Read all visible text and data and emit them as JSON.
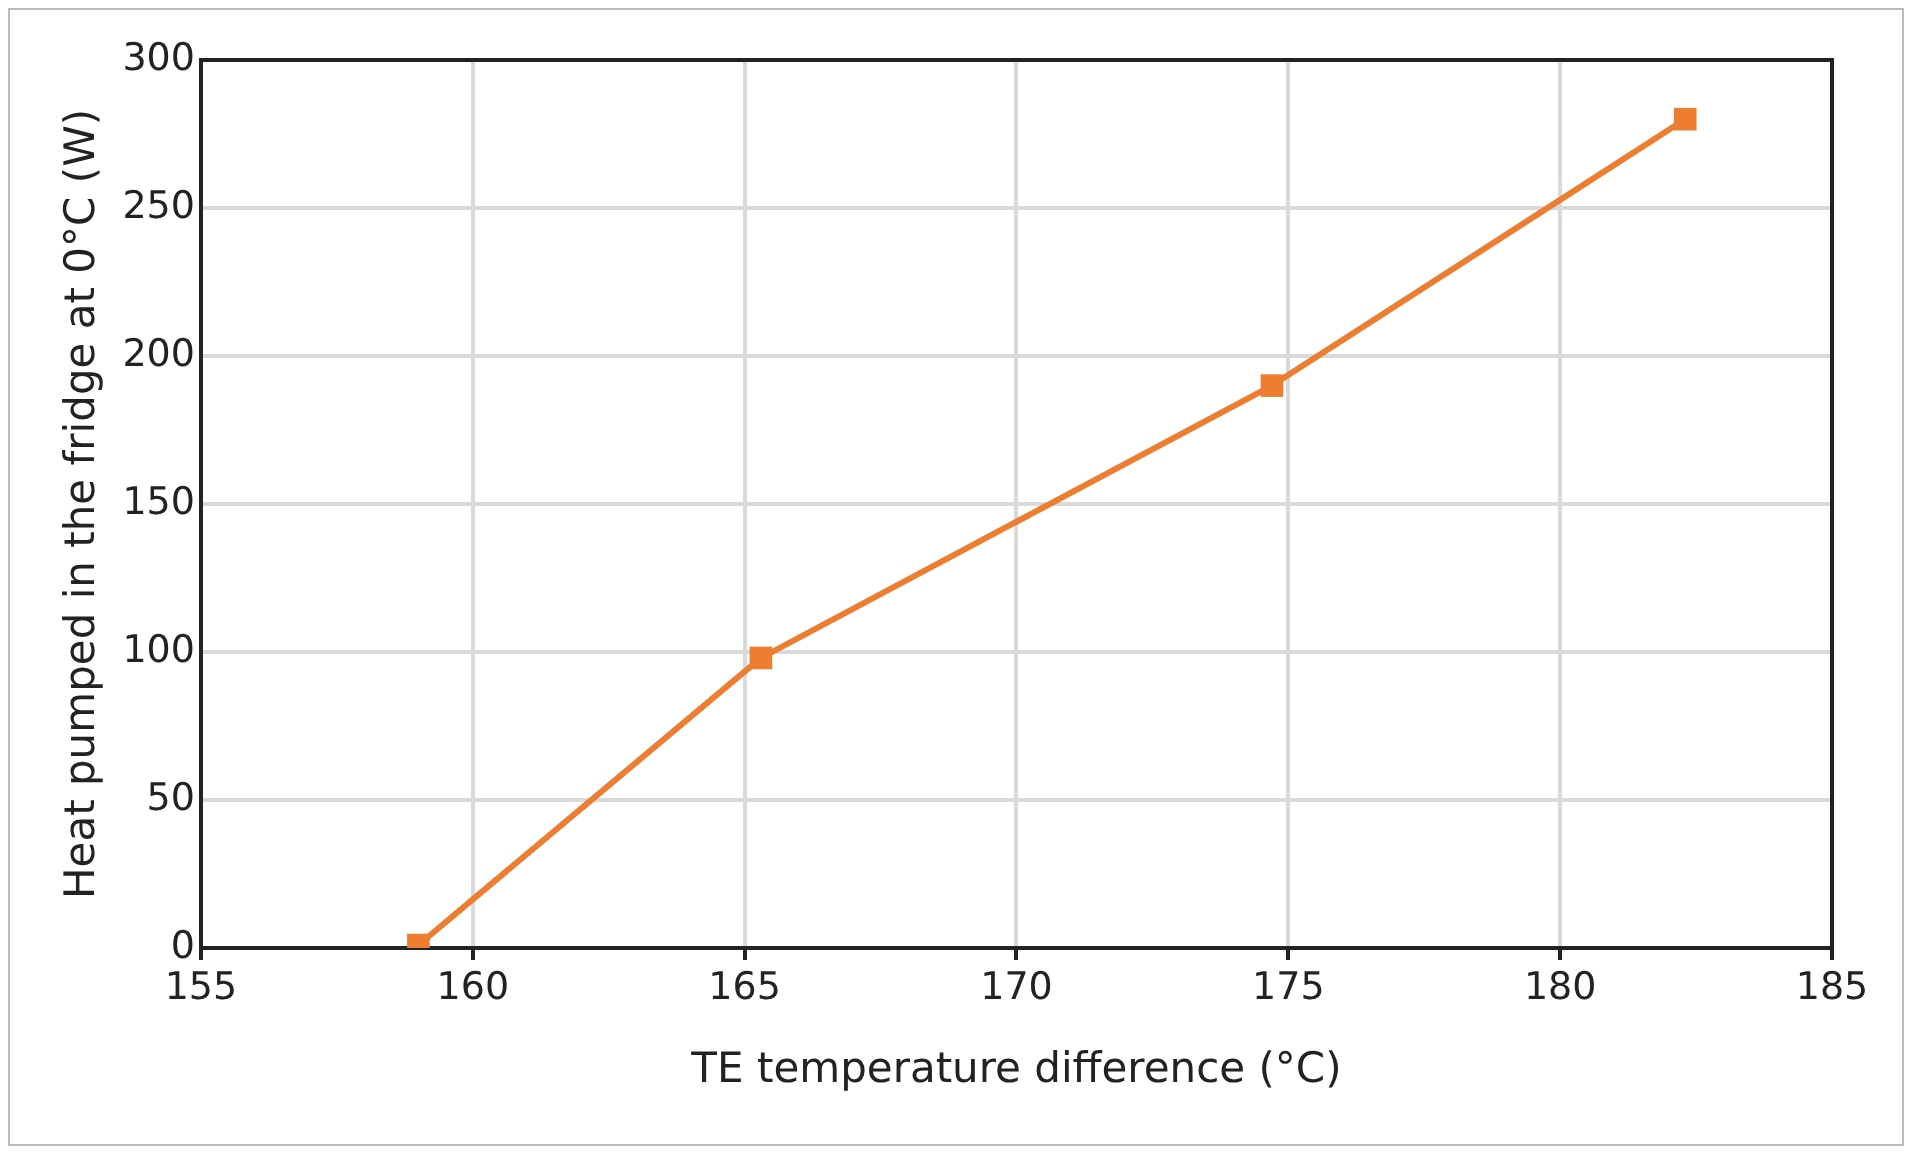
{
  "chart_data": {
    "type": "line",
    "xlabel": "TE temperature difference (°C)",
    "ylabel": "Heat pumped in the fridge at 0°C (W)",
    "x": [
      159,
      165.3,
      174.7,
      182.3
    ],
    "series": [
      {
        "color": "#ed7d31",
        "values": [
          1,
          98,
          190,
          280
        ]
      }
    ],
    "xlim": [
      155,
      185
    ],
    "xticks": [
      155,
      160,
      165,
      170,
      175,
      180,
      185
    ],
    "ylim": [
      0,
      300
    ],
    "yticks": [
      0,
      50,
      100,
      150,
      200,
      250,
      300
    ],
    "grid": true,
    "legend": false,
    "marker": "square",
    "line_style": "solid"
  }
}
